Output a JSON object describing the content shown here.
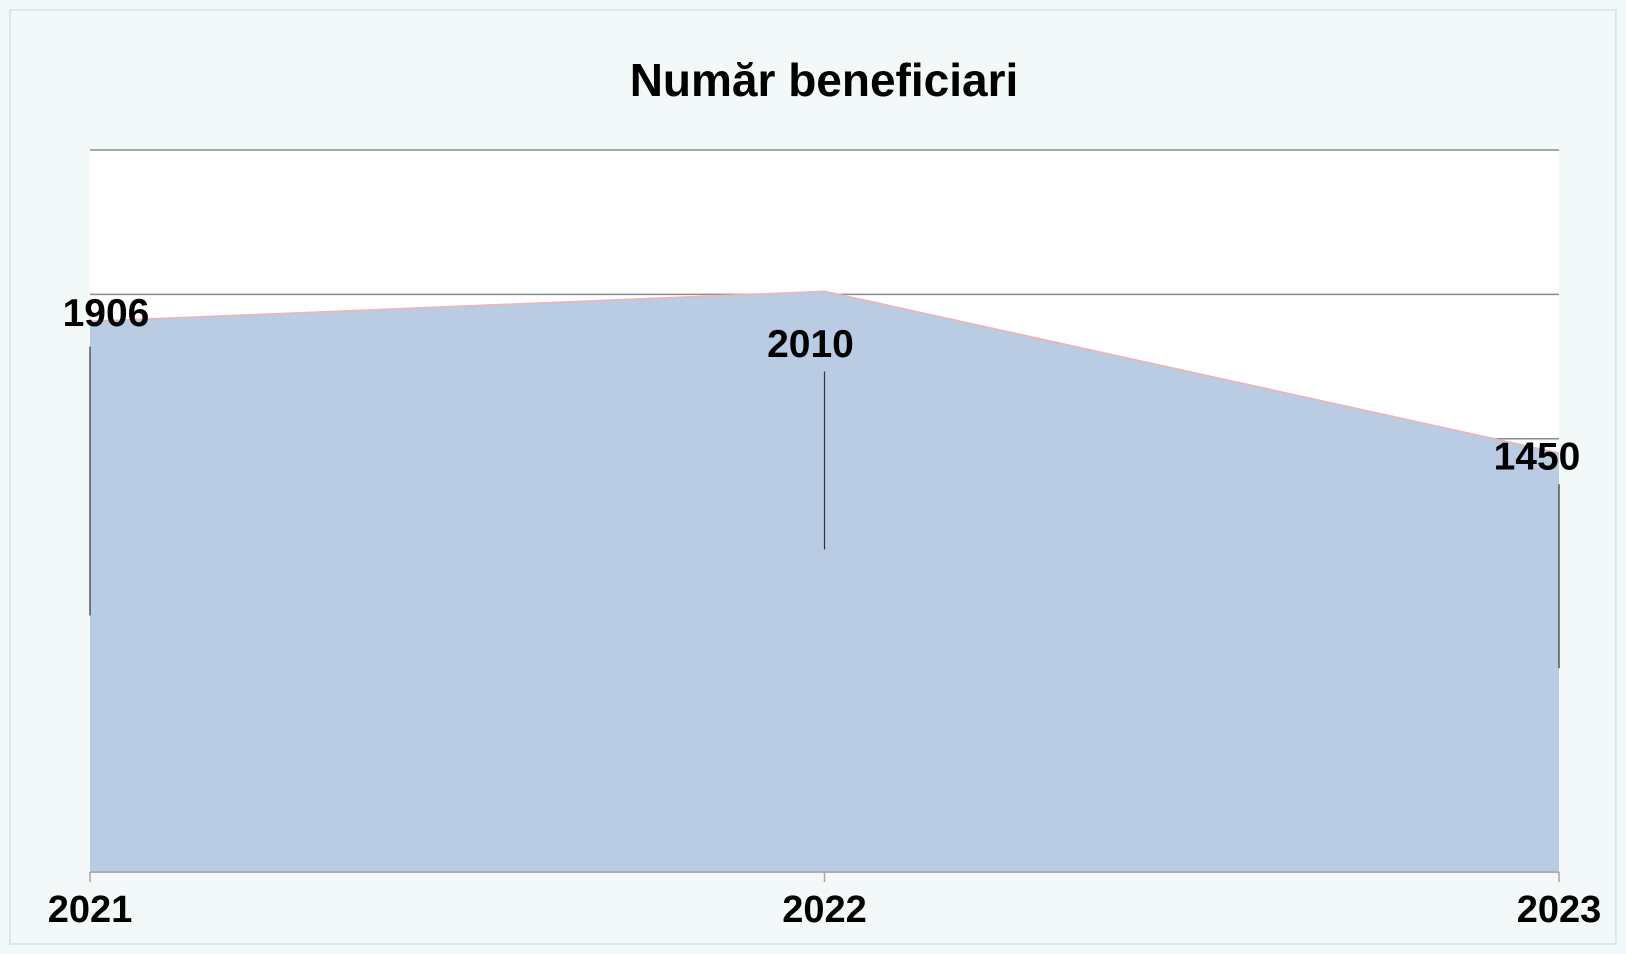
{
  "chart_data": {
    "type": "area",
    "title": "Număr beneficiari",
    "categories": [
      "2021",
      "2022",
      "2023"
    ],
    "values": [
      1906,
      2010,
      1450
    ],
    "color": "#b9cce4",
    "line_color": "#e6b9b8",
    "ylim": [
      0,
      2500
    ],
    "yticks": [
      0,
      500,
      1000,
      1500,
      2000,
      2500
    ],
    "grid": true
  }
}
